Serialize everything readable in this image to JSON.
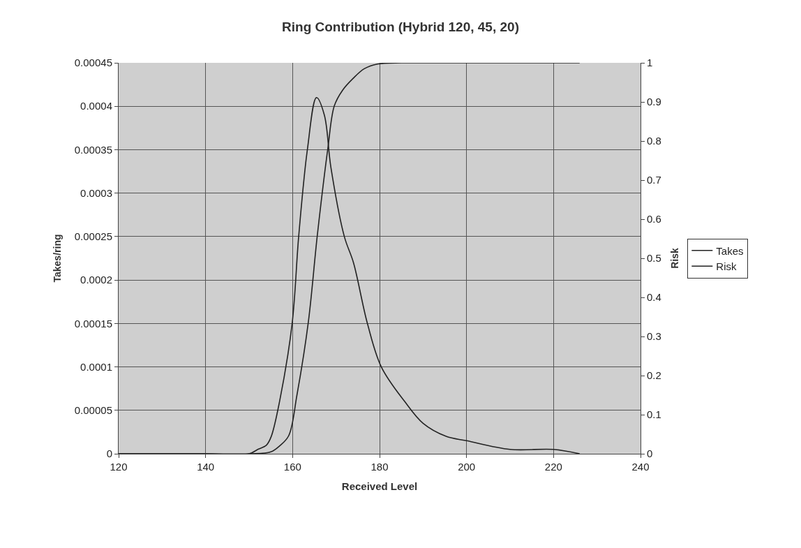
{
  "chart_data": {
    "type": "line",
    "title": "Ring Contribution (Hybrid 120, 45, 20)",
    "xlabel": "Received Level",
    "ylabel": "Takes/ring",
    "y2label": "Risk",
    "xlim": [
      120,
      240
    ],
    "xticks": [
      120,
      140,
      160,
      180,
      200,
      220,
      240
    ],
    "ylim": [
      0,
      0.00045
    ],
    "yticks": [
      0,
      {
        "value": 5e-05,
        "label": "0.00005"
      },
      0.0001,
      0.00015,
      0.0002,
      0.00025,
      0.0003,
      0.00035,
      0.0004,
      0.00045
    ],
    "y2lim": [
      0,
      1
    ],
    "y2ticks": [
      0,
      0.1,
      0.2,
      0.3,
      0.4,
      0.5,
      0.6,
      0.7,
      0.8,
      0.9,
      1
    ],
    "grid": true,
    "legend": "right",
    "marker": "none",
    "line_style": "solid",
    "series": [
      {
        "name": "Takes",
        "color": "#222222",
        "x": [
          120,
          140,
          150,
          152,
          154,
          155.1,
          157,
          159.9,
          161.4,
          163.4,
          165.5,
          167.3,
          168.8,
          171.9,
          174,
          177.2,
          180.4,
          185.8,
          190,
          195.3,
          200,
          210,
          220,
          226
        ],
        "values": [
          0,
          0,
          0,
          5e-06,
          1e-05,
          2e-05,
          6e-05,
          0.00015,
          0.00025,
          0.00035,
          0.00041,
          0.00039,
          0.00033,
          0.00025,
          0.00022,
          0.00015,
          0.0001,
          6e-05,
          3.5e-05,
          2e-05,
          1.5e-05,
          5e-06,
          5e-06,
          0
        ]
      },
      {
        "name": "Risk",
        "color": "#222222",
        "axis": "y2",
        "x": [
          120,
          140,
          150,
          155,
          157,
          159.1,
          161,
          163.6,
          165.7,
          168.1,
          169.6,
          171.5,
          173.9,
          176.5,
          179.5,
          185,
          190,
          226
        ],
        "values": [
          0,
          0,
          0,
          0.005,
          0.02,
          0.046,
          0.15,
          0.335,
          0.56,
          0.78,
          0.89,
          0.93,
          0.96,
          0.985,
          0.997,
          1,
          1,
          1
        ]
      }
    ]
  }
}
